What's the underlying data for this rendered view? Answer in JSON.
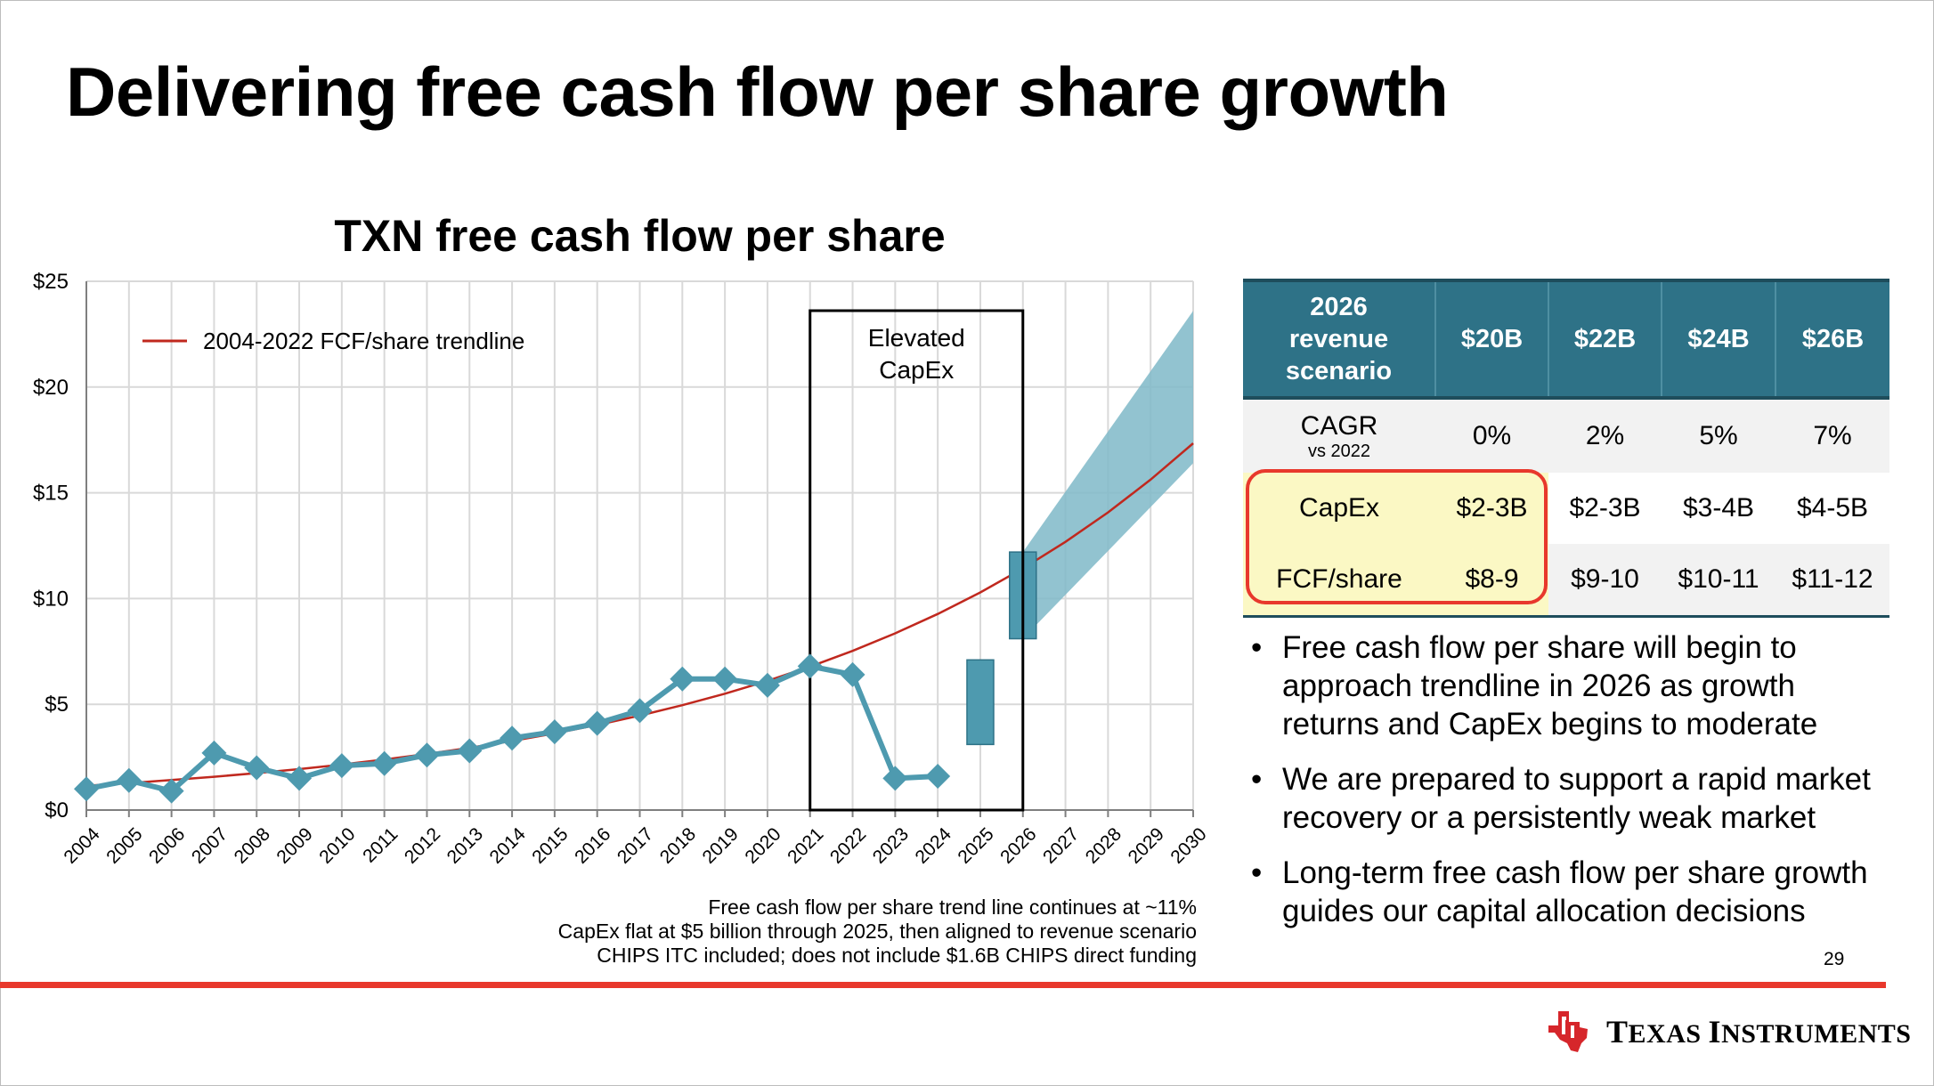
{
  "page": {
    "title": "Delivering free cash flow per share growth",
    "page_number": "29"
  },
  "chart_data": {
    "type": "line",
    "title": "TXN free cash flow per share",
    "categories": [
      "2004",
      "2005",
      "2006",
      "2007",
      "2008",
      "2009",
      "2010",
      "2011",
      "2012",
      "2013",
      "2014",
      "2015",
      "2016",
      "2017",
      "2018",
      "2019",
      "2020",
      "2021",
      "2022",
      "2023",
      "2024",
      "2025",
      "2026",
      "2027",
      "2028",
      "2029",
      "2030"
    ],
    "y_ticks": [
      "$0",
      "$5",
      "$10",
      "$15",
      "$20",
      "$25"
    ],
    "ylim": [
      0,
      25
    ],
    "grid": true,
    "legend": "top-left",
    "series": [
      {
        "name": "FCF/share",
        "color": "#4e9aaf",
        "x": [
          "2004",
          "2005",
          "2006",
          "2007",
          "2008",
          "2009",
          "2010",
          "2011",
          "2012",
          "2013",
          "2014",
          "2015",
          "2016",
          "2017",
          "2018",
          "2019",
          "2020",
          "2021",
          "2022",
          "2023",
          "2024"
        ],
        "values": [
          1.0,
          1.4,
          0.9,
          2.7,
          2.0,
          1.5,
          2.1,
          2.2,
          2.6,
          2.8,
          3.4,
          3.7,
          4.1,
          4.7,
          6.2,
          6.2,
          5.9,
          6.8,
          6.4,
          1.5,
          1.6
        ]
      },
      {
        "name": "2004-2022 FCF/share trendline",
        "color": "#c0281e",
        "growth": "~11%",
        "start_year": "2004",
        "start_value": 1.15
      }
    ],
    "ranges": [
      {
        "x": "2025",
        "low": 3.1,
        "high": 7.1,
        "color": "#4e9aaf"
      },
      {
        "x": "2026",
        "low": 8.1,
        "high": 12.2,
        "color": "#4e9aaf"
      }
    ],
    "forecast_band": {
      "x": [
        "2026",
        "2030"
      ],
      "low": [
        8.1,
        16.4
      ],
      "high": [
        12.2,
        23.6
      ],
      "color": "#7fb8c8"
    },
    "annotation": {
      "label_lines": [
        "Elevated",
        "CapEx"
      ],
      "x_range": [
        "2021",
        "2026"
      ]
    },
    "legend_label": "2004-2022 FCF/share trendline",
    "footnotes": [
      "Free cash flow per share trend line continues at ~11%",
      "CapEx flat at $5 billion through 2025, then aligned to revenue scenario",
      "CHIPS ITC included; does not include $1.6B CHIPS direct funding"
    ]
  },
  "table": {
    "header_lines": [
      "2026",
      "revenue",
      "scenario"
    ],
    "columns": [
      "$20B",
      "$22B",
      "$24B",
      "$26B"
    ],
    "rows": [
      {
        "label": "CAGR",
        "sublabel": "vs 2022",
        "values": [
          "0%",
          "2%",
          "5%",
          "7%"
        ]
      },
      {
        "label": "CapEx",
        "values": [
          "$2-3B",
          "$2-3B",
          "$3-4B",
          "$4-5B"
        ]
      },
      {
        "label": "FCF/share",
        "values": [
          "$8-9",
          "$9-10",
          "$10-11",
          "$11-12"
        ]
      }
    ],
    "highlight_color": "#e8382c"
  },
  "bullets": [
    "Free cash flow per share will begin to approach trendline in 2026 as growth returns and CapEx begins to moderate",
    "We are prepared to support a rapid market recovery or a persistently weak market",
    "Long-term free cash flow per share growth guides our capital allocation decisions"
  ],
  "logo": {
    "name": "Texas Instruments",
    "text_first": "T",
    "text_rest_1": "EXAS ",
    "text_second": "I",
    "text_rest_2": "NSTRUMENTS"
  },
  "colors": {
    "accent_red": "#e8382c",
    "table_header": "#2e7287",
    "series": "#4e9aaf"
  }
}
